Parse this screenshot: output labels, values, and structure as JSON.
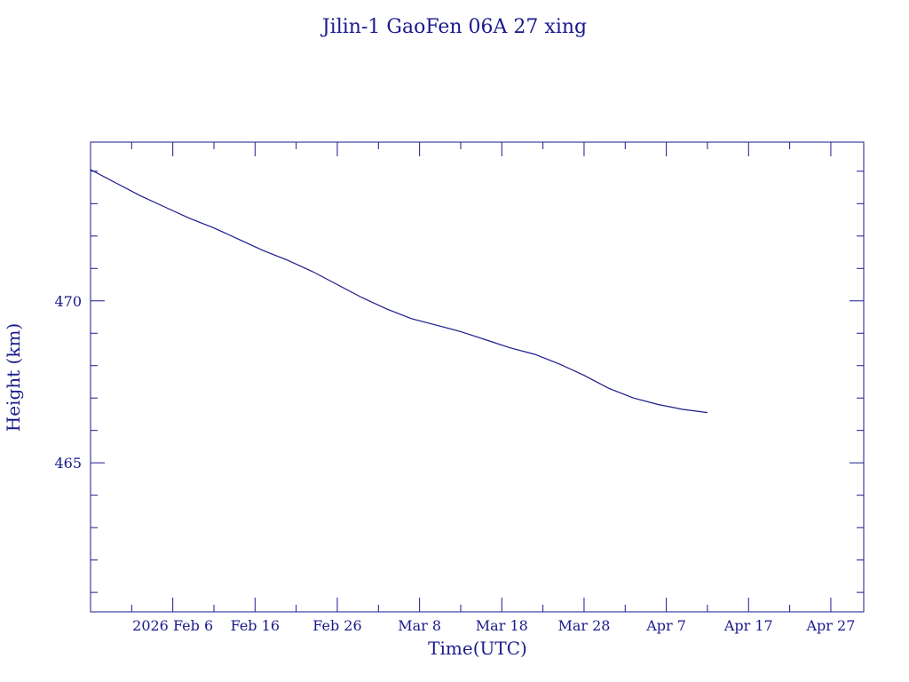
{
  "chart_data": {
    "type": "line",
    "title": "Jilin-1 GaoFen 06A 27 xing",
    "xlabel": "Time(UTC)",
    "ylabel": "Height (km)",
    "x_start_date": "2026-01-27",
    "x_end_date": "2026-05-01",
    "xlim": [
      "2026-01-27",
      "2026-05-01"
    ],
    "ylim": [
      460.4,
      474.9
    ],
    "x_ticks": [
      {
        "date": "2026-02-06",
        "label": "2026 Feb  6"
      },
      {
        "date": "2026-02-16",
        "label": "Feb 16"
      },
      {
        "date": "2026-02-26",
        "label": "Feb 26"
      },
      {
        "date": "2026-03-08",
        "label": "Mar  8"
      },
      {
        "date": "2026-03-18",
        "label": "Mar 18"
      },
      {
        "date": "2026-03-28",
        "label": "Mar 28"
      },
      {
        "date": "2026-04-07",
        "label": "Apr  7"
      },
      {
        "date": "2026-04-17",
        "label": "Apr 17"
      },
      {
        "date": "2026-04-27",
        "label": "Apr 27"
      }
    ],
    "y_ticks": [
      {
        "value": 465,
        "label": "465"
      },
      {
        "value": 470,
        "label": "470"
      }
    ],
    "series": [
      {
        "name": "Height",
        "color": "#1a1a8c",
        "x": [
          "2026-01-27",
          "2026-01-30",
          "2026-02-02",
          "2026-02-05",
          "2026-02-08",
          "2026-02-11",
          "2026-02-14",
          "2026-02-17",
          "2026-02-20",
          "2026-02-23",
          "2026-02-26",
          "2026-03-01",
          "2026-03-04",
          "2026-03-07",
          "2026-03-10",
          "2026-03-13",
          "2026-03-16",
          "2026-03-19",
          "2026-03-22",
          "2026-03-25",
          "2026-03-28",
          "2026-03-31",
          "2026-04-03",
          "2026-04-06",
          "2026-04-09",
          "2026-04-12"
        ],
        "y": [
          474.05,
          473.65,
          473.25,
          472.9,
          472.55,
          472.25,
          471.9,
          471.55,
          471.25,
          470.9,
          470.5,
          470.1,
          469.75,
          469.45,
          469.25,
          469.05,
          468.8,
          468.55,
          468.35,
          468.05,
          467.7,
          467.3,
          467.0,
          466.8,
          466.65,
          466.55
        ]
      }
    ]
  }
}
